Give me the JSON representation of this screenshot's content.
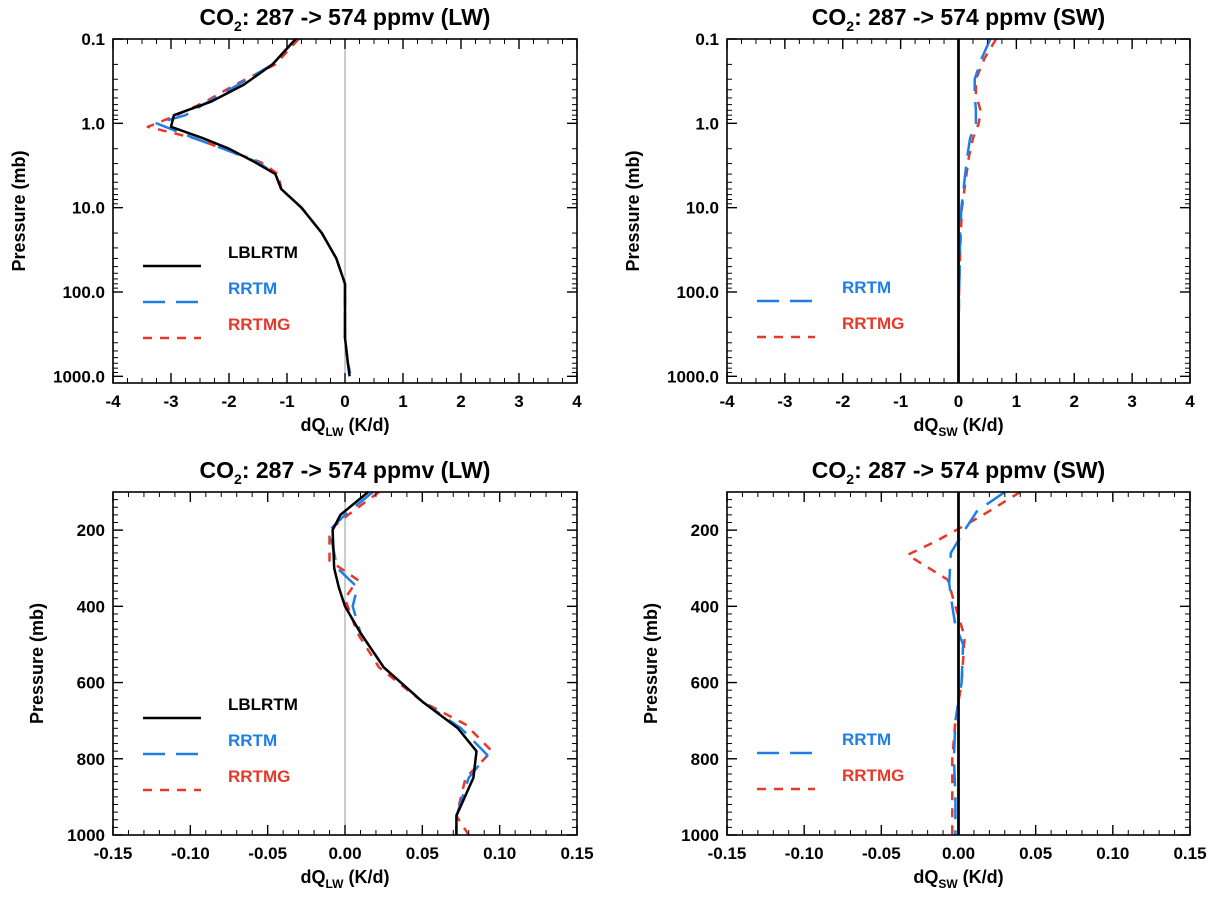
{
  "chart_data": [
    {
      "type": "line",
      "title": {
        "main": "CO",
        "sub": "2",
        "rest": ": 287 -> 574 ppmv (LW)"
      },
      "xlabel": {
        "main": "dQ",
        "sub": "LW",
        "rest": " (K/d)"
      },
      "ylabel": "Pressure (mb)",
      "y_scale": "log",
      "y_reversed": true,
      "xlim": [
        -4,
        4
      ],
      "ylim": [
        0.1,
        1200
      ],
      "x_ticks": [
        "-4",
        "-3",
        "-2",
        "-1",
        "0",
        "1",
        "2",
        "3",
        "4"
      ],
      "y_ticks": [
        "0.1",
        "1.0",
        "10.0",
        "100.0",
        "1000.0"
      ],
      "zero_line": {
        "color": "#999999"
      },
      "legend_position": "lower-left",
      "series": [
        {
          "name": "LBLRTM",
          "color": "#000000",
          "style": "solid",
          "x": [
            -0.85,
            -1.25,
            -1.75,
            -2.3,
            -2.95,
            -3.0,
            -2.45,
            -2.0,
            -1.55,
            -1.2,
            -1.1,
            -0.75,
            -0.4,
            -0.15,
            0.0,
            0.0,
            0.0,
            0.05,
            0.08
          ],
          "y": [
            0.1,
            0.2,
            0.35,
            0.55,
            0.8,
            1.1,
            1.5,
            2.0,
            2.9,
            4.0,
            6.0,
            10.0,
            20.0,
            40.0,
            80.0,
            150.0,
            350.0,
            700.0,
            1000.0
          ]
        },
        {
          "name": "RRTM",
          "color": "#1e7ee8",
          "style": "long-dash",
          "x": [
            -0.85,
            -1.25,
            -1.85,
            -2.35,
            -2.75,
            -3.25,
            -2.6,
            -2.1,
            -1.5,
            -1.2,
            -1.1,
            -0.75,
            -0.4,
            -0.15,
            0.0,
            0.0,
            0.0,
            0.05,
            0.1
          ],
          "y": [
            0.1,
            0.2,
            0.35,
            0.55,
            0.8,
            1.0,
            1.5,
            2.0,
            2.9,
            4.0,
            6.0,
            10.0,
            20.0,
            40.0,
            80.0,
            150.0,
            350.0,
            700.0,
            1000.0
          ]
        },
        {
          "name": "RRTMG",
          "color": "#e8382a",
          "style": "short-dash",
          "x": [
            -0.8,
            -1.2,
            -1.9,
            -2.4,
            -2.9,
            -3.4,
            -2.6,
            -2.1,
            -1.45,
            -1.15,
            -1.1,
            -0.75,
            -0.4,
            -0.15,
            0.0,
            0.0,
            0.0,
            0.05,
            0.1
          ],
          "y": [
            0.1,
            0.2,
            0.35,
            0.55,
            0.8,
            1.1,
            1.5,
            2.0,
            2.9,
            4.0,
            6.0,
            10.0,
            20.0,
            40.0,
            80.0,
            150.0,
            350.0,
            700.0,
            1000.0
          ]
        }
      ]
    },
    {
      "type": "line",
      "title": {
        "main": "CO",
        "sub": "2",
        "rest": ": 287 -> 574 ppmv (SW)"
      },
      "xlabel": {
        "main": "dQ",
        "sub": "SW",
        "rest": " (K/d)"
      },
      "ylabel": "Pressure (mb)",
      "y_scale": "log",
      "y_reversed": true,
      "xlim": [
        -4,
        4
      ],
      "ylim": [
        0.1,
        1200
      ],
      "x_ticks": [
        "-4",
        "-3",
        "-2",
        "-1",
        "0",
        "1",
        "2",
        "3",
        "4"
      ],
      "y_ticks": [
        "0.1",
        "1.0",
        "10.0",
        "100.0",
        "1000.0"
      ],
      "zero_line": {
        "color": "#000000"
      },
      "legend_position": "lower-left",
      "series": [
        {
          "name": "LBLRTM",
          "color": "#000000",
          "style": "solid",
          "x": [
            0.0,
            0.0
          ],
          "y": [
            0.1,
            1200.0
          ]
        },
        {
          "name": "RRTM",
          "color": "#1e7ee8",
          "style": "long-dash",
          "x": [
            0.55,
            0.4,
            0.28,
            0.28,
            0.3,
            0.3,
            0.2,
            0.15,
            0.1,
            0.05,
            0.03,
            0.02,
            0.01,
            0.0,
            0.0
          ],
          "y": [
            0.1,
            0.17,
            0.3,
            0.45,
            0.7,
            1.0,
            1.5,
            2.5,
            5.0,
            10.0,
            20.0,
            50.0,
            100.0,
            300.0,
            1000.0
          ]
        },
        {
          "name": "RRTMG",
          "color": "#e8382a",
          "style": "short-dash",
          "x": [
            0.65,
            0.45,
            0.3,
            0.3,
            0.38,
            0.35,
            0.25,
            0.18,
            0.12,
            0.06,
            0.04,
            0.02,
            0.01,
            0.0,
            0.0
          ],
          "y": [
            0.1,
            0.17,
            0.3,
            0.45,
            0.7,
            1.0,
            1.5,
            2.5,
            5.0,
            10.0,
            20.0,
            50.0,
            100.0,
            300.0,
            1000.0
          ]
        }
      ]
    },
    {
      "type": "line",
      "title": {
        "main": "CO",
        "sub": "2",
        "rest": ": 287 -> 574 ppmv (LW)"
      },
      "xlabel": {
        "main": "dQ",
        "sub": "LW",
        "rest": " (K/d)"
      },
      "ylabel": "Pressure (mb)",
      "y_scale": "linear",
      "y_reversed": true,
      "xlim": [
        -0.15,
        0.15
      ],
      "ylim": [
        100,
        1000
      ],
      "x_ticks": [
        "-0.15",
        "-0.10",
        "-0.05",
        "0.00",
        "0.05",
        "0.10",
        "0.15"
      ],
      "y_ticks": [
        "200",
        "400",
        "600",
        "800",
        "1000"
      ],
      "zero_line": {
        "color": "#999999"
      },
      "legend_position": "lower-left",
      "series": [
        {
          "name": "LBLRTM",
          "color": "#000000",
          "style": "solid",
          "x": [
            0.015,
            -0.003,
            -0.008,
            -0.007,
            -0.004,
            0.0,
            0.01,
            0.025,
            0.05,
            0.073,
            0.085,
            0.083,
            0.072,
            0.072
          ],
          "y": [
            100,
            160,
            200,
            300,
            350,
            400,
            470,
            560,
            650,
            720,
            780,
            850,
            950,
            1000
          ]
        },
        {
          "name": "RRTM",
          "color": "#1e7ee8",
          "style": "long-dash",
          "x": [
            0.018,
            0.0,
            -0.01,
            -0.005,
            0.008,
            0.005,
            0.01,
            0.025,
            0.05,
            0.075,
            0.092,
            0.08,
            0.072,
            0.072
          ],
          "y": [
            100,
            160,
            200,
            300,
            350,
            400,
            470,
            560,
            650,
            720,
            790,
            850,
            950,
            1000
          ]
        },
        {
          "name": "RRTMG",
          "color": "#e8382a",
          "style": "short-dash",
          "x": [
            0.022,
            0.002,
            -0.01,
            -0.01,
            0.008,
            0.0,
            0.008,
            0.022,
            0.05,
            0.078,
            0.095,
            0.078,
            0.072,
            0.08
          ],
          "y": [
            100,
            160,
            200,
            280,
            330,
            380,
            470,
            560,
            650,
            710,
            780,
            850,
            950,
            1000
          ]
        }
      ]
    },
    {
      "type": "line",
      "title": {
        "main": "CO",
        "sub": "2",
        "rest": ": 287 -> 574 ppmv (SW)"
      },
      "xlabel": {
        "main": "dQ",
        "sub": "SW",
        "rest": " (K/d)"
      },
      "ylabel": "Pressure (mb)",
      "y_scale": "linear",
      "y_reversed": true,
      "xlim": [
        -0.15,
        0.15
      ],
      "ylim": [
        100,
        1000
      ],
      "x_ticks": [
        "-0.15",
        "-0.10",
        "-0.05",
        "0.00",
        "0.05",
        "0.10",
        "0.15"
      ],
      "y_ticks": [
        "200",
        "400",
        "600",
        "800",
        "1000"
      ],
      "zero_line": {
        "color": "#000000"
      },
      "legend_position": "lower-left",
      "series": [
        {
          "name": "LBLRTM",
          "color": "#000000",
          "style": "solid",
          "x": [
            0.0,
            0.0
          ],
          "y": [
            100,
            1000
          ]
        },
        {
          "name": "RRTM",
          "color": "#1e7ee8",
          "style": "long-dash",
          "x": [
            0.03,
            0.012,
            0.004,
            -0.005,
            -0.006,
            -0.004,
            -0.002,
            0.003,
            0.002,
            -0.002,
            -0.003,
            -0.002,
            -0.002
          ],
          "y": [
            100,
            150,
            200,
            260,
            340,
            400,
            450,
            500,
            600,
            700,
            800,
            900,
            1000
          ]
        },
        {
          "name": "RRTMG",
          "color": "#e8382a",
          "style": "short-dash",
          "x": [
            0.04,
            0.02,
            0.003,
            -0.015,
            -0.033,
            -0.007,
            -0.002,
            0.004,
            0.002,
            -0.002,
            -0.004,
            -0.004,
            -0.004
          ],
          "y": [
            100,
            150,
            190,
            230,
            265,
            330,
            400,
            480,
            600,
            700,
            800,
            900,
            1000
          ]
        }
      ]
    }
  ]
}
